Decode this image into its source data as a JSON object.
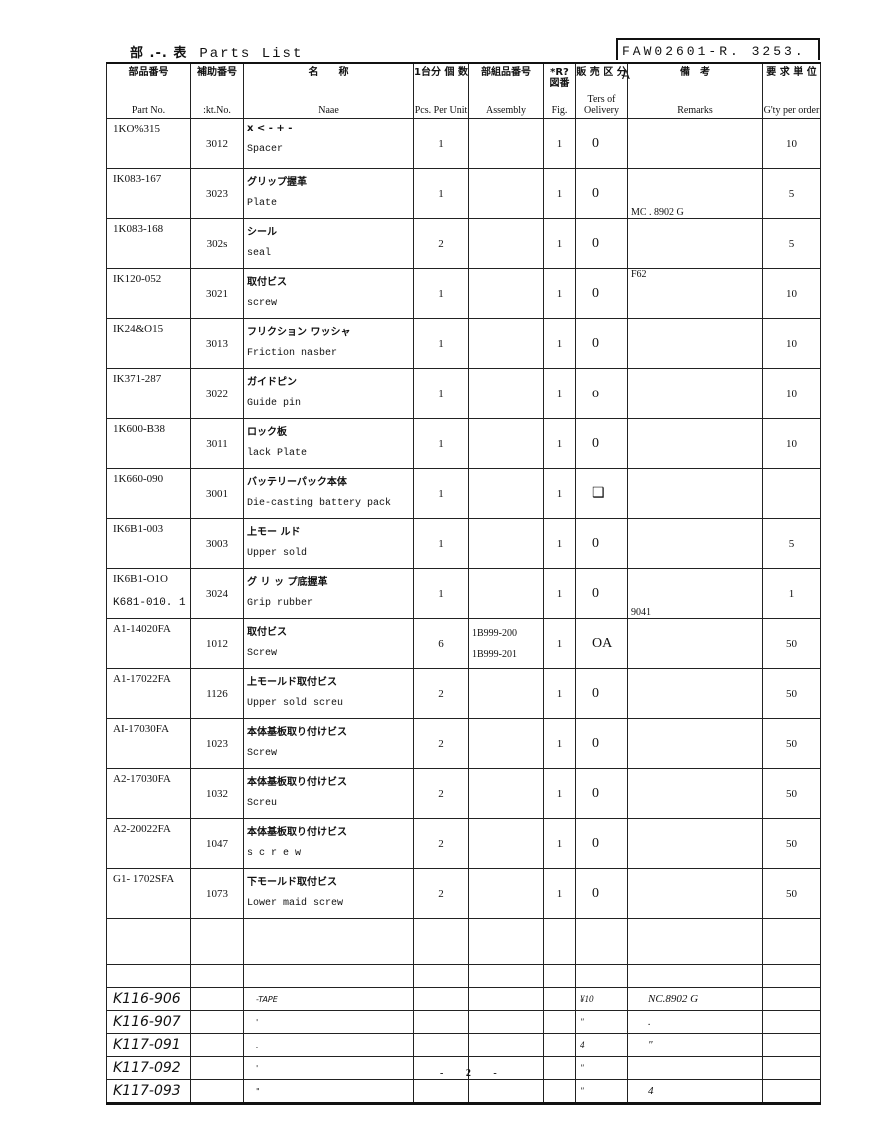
{
  "title": {
    "jp": "部 .-. 表",
    "en": "Parts List"
  },
  "doc_no": "FAW02601-R. 3253. A",
  "headers": [
    {
      "jp": "部品番号",
      "en": "Part No."
    },
    {
      "jp": "補助番号",
      "en": ":kt.No."
    },
    {
      "jp": "名　　称",
      "en": "Naae"
    },
    {
      "jp": "1台分 個 数",
      "en": "Pcs. Per Unit"
    },
    {
      "jp": "部組品番号",
      "en": "Assembly"
    },
    {
      "jp": "*R? 図番",
      "en": "Fig."
    },
    {
      "jp": "販 売 区 分",
      "en": "Ters of Oelivery"
    },
    {
      "jp": "備　考",
      "en": "Remarks"
    },
    {
      "jp": "要 求 単 位",
      "en": "G'ty per order"
    }
  ],
  "rows": [
    {
      "part": "1KO%315",
      "sub": "3012",
      "jp": "x < - + -",
      "en": "Spacer",
      "pcs": "1",
      "asm": "",
      "fig": "1",
      "del": "0",
      "rem": "",
      "qty": "10"
    },
    {
      "part": "IK083-167",
      "sub": "3023",
      "jp": "グリップ握革",
      "en": "Plate",
      "pcs": "1",
      "asm": "",
      "fig": "1",
      "del": "0",
      "rem": "MC . 8902 G",
      "qty": "5"
    },
    {
      "part": "1K083-168",
      "sub": "302s",
      "jp": "シール",
      "en": "seal",
      "pcs": "2",
      "asm": "",
      "fig": "1",
      "del": "0",
      "rem": "",
      "qty": "5"
    },
    {
      "part": "IK120-052",
      "sub": "3021",
      "jp": "取付ビス",
      "en": "screw",
      "pcs": "1",
      "asm": "",
      "fig": "1",
      "del": "0",
      "rem": "F62",
      "qty": "10"
    },
    {
      "part": "IK24&O15",
      "sub": "3013",
      "jp": "フリクション ワッシャ",
      "en": "Friction nasber",
      "pcs": "1",
      "asm": "",
      "fig": "1",
      "del": "0",
      "rem": "",
      "qty": "10"
    },
    {
      "part": "IK371-287",
      "sub": "3022",
      "jp": "ガイドピン",
      "en": "Guide pin",
      "pcs": "1",
      "asm": "",
      "fig": "1",
      "del": "o",
      "rem": "",
      "qty": "10"
    },
    {
      "part": "1K600-B38",
      "sub": "3011",
      "jp": "ロック板",
      "en": "lack Plate",
      "pcs": "1",
      "asm": "",
      "fig": "1",
      "del": "0",
      "rem": "",
      "qty": "10"
    },
    {
      "part": "1K660-090",
      "sub": "3001",
      "jp": "バッテリーパック本体",
      "en": "Die-casting battery pack",
      "pcs": "1",
      "asm": "",
      "fig": "1",
      "del": "❑",
      "rem": "",
      "qty": ""
    },
    {
      "part": "IK6B1-003",
      "sub": "3003",
      "jp": "上モー ルド",
      "en": "Upper sold",
      "pcs": "1",
      "asm": "",
      "fig": "1",
      "del": "0",
      "rem": "",
      "qty": "5"
    },
    {
      "part": "IK6B1-O1O",
      "part2": "K681-010. 1",
      "sub": "3024",
      "jp": "グ リ ッ プ底握革",
      "en": "Grip rubber",
      "pcs": "1",
      "asm": "",
      "fig": "1",
      "del": "0",
      "rem": "9041",
      "qty": "1"
    },
    {
      "part": "A1-14020FA",
      "sub": "1012",
      "jp": "取付ビス",
      "en": "Screw",
      "pcs": "6",
      "asm": "1B999-200",
      "asm2": "1B999-201",
      "fig": "1",
      "del": "OA",
      "rem": "",
      "qty": "50"
    },
    {
      "part": "A1-17022FA",
      "sub": "1126",
      "jp": "上モールド取付ビス",
      "en": "Upper sold screu",
      "pcs": "2",
      "asm": "",
      "fig": "1",
      "del": "0",
      "rem": "",
      "qty": "50"
    },
    {
      "part": "AI-17030FA",
      "sub": "1023",
      "jp": "本体基板取り付けビス",
      "en": "Screw",
      "pcs": "2",
      "asm": "",
      "fig": "1",
      "del": "0",
      "rem": "",
      "qty": "50"
    },
    {
      "part": "A2-17030FA",
      "sub": "1032",
      "jp": "本体基板取り付けビス",
      "en": "Screu",
      "pcs": "2",
      "asm": "",
      "fig": "1",
      "del": "0",
      "rem": "",
      "qty": "50"
    },
    {
      "part": "A2-20022FA",
      "sub": "1047",
      "jp": "本体基板取り付けビス",
      "en": "s c r e w",
      "pcs": "2",
      "asm": "",
      "fig": "1",
      "del": "0",
      "rem": "",
      "qty": "50"
    },
    {
      "part": "G1- 1702SFA",
      "sub": "1073",
      "jp": "下モールド取付ビス",
      "en": "Lower maid screw",
      "pcs": "2",
      "asm": "",
      "fig": "1",
      "del": "0",
      "rem": "",
      "qty": "50"
    }
  ],
  "handwritten_rows": [
    {
      "part": "K116-906",
      "name": "-TAPE",
      "del": "¥10",
      "rem": "NC.8902 G"
    },
    {
      "part": "K116-907",
      "name": "'",
      "del": "\"",
      "rem": "."
    },
    {
      "part": "K117-091",
      "name": ".",
      "del": "4",
      "rem": "\""
    },
    {
      "part": "K117-092",
      "name": "'",
      "del": "\"",
      "rem": ""
    },
    {
      "part": "K117-093",
      "name": "\"",
      "del": "\"",
      "rem": "4"
    }
  ],
  "page_number": "- 2 -"
}
